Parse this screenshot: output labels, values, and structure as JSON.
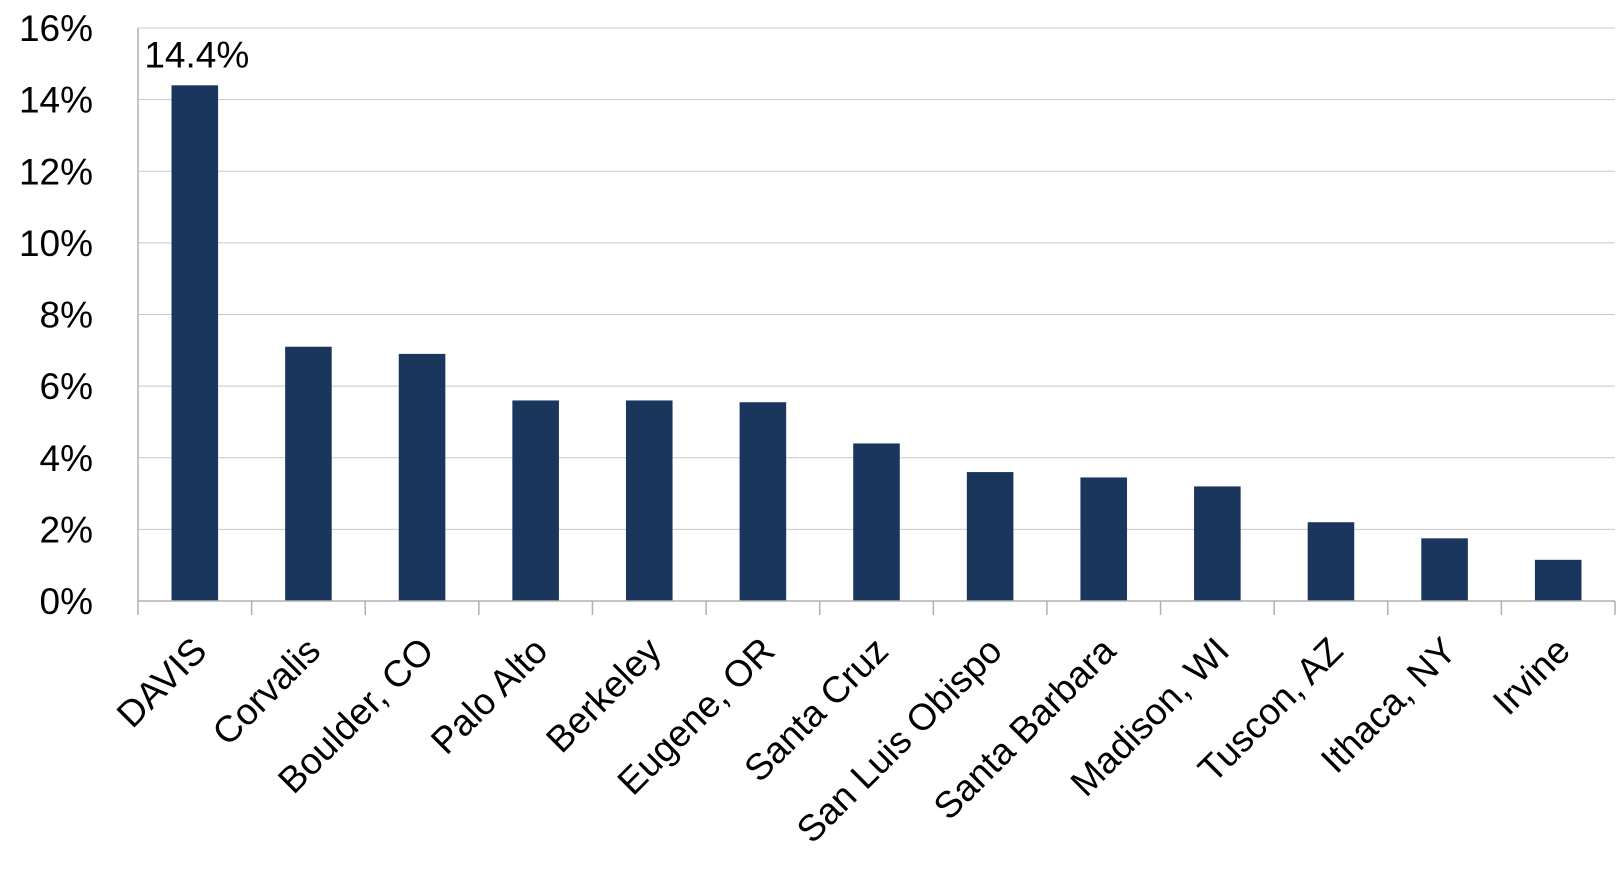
{
  "chart_data": {
    "type": "bar",
    "categories": [
      "DAVIS",
      "Corvalis",
      "Boulder, CO",
      "Palo Alto",
      "Berkeley",
      "Eugene, OR",
      "Santa Cruz",
      "San Luis Obispo",
      "Santa Barbara",
      "Madison, WI",
      "Tuscon, AZ",
      "Ithaca, NY",
      "Irvine"
    ],
    "values": [
      14.4,
      7.1,
      6.9,
      5.6,
      5.6,
      5.55,
      4.4,
      3.6,
      3.45,
      3.2,
      2.2,
      1.75,
      1.15
    ],
    "unit": "%",
    "ylim": [
      0,
      16
    ],
    "yticks": [
      "0%",
      "2%",
      "4%",
      "6%",
      "8%",
      "10%",
      "12%",
      "14%",
      "16%"
    ],
    "data_labels": [
      {
        "category": "DAVIS",
        "text": "14.4%"
      }
    ],
    "title": "",
    "xlabel": "",
    "ylabel": "",
    "grid": true,
    "legend": "none",
    "bar_color": "#1b365d"
  }
}
